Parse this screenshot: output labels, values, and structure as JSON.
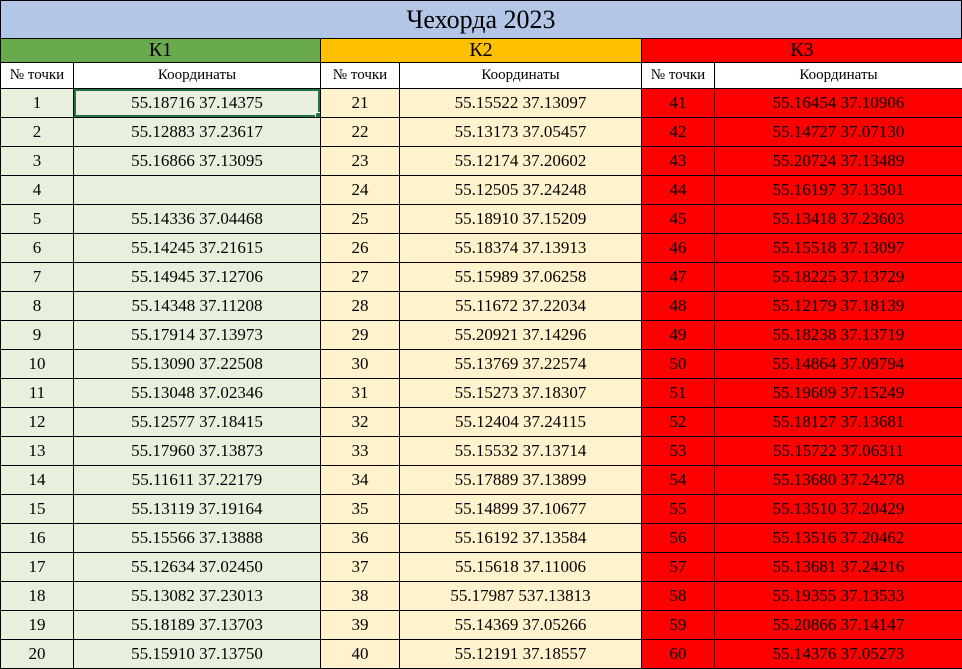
{
  "title": "Чехорда 2023",
  "columns": {
    "num_header": "№ точки",
    "coord_header": "Координаты"
  },
  "colors": {
    "title_bg": "#B4C6E7",
    "border": "#000000",
    "selection": "#217346"
  },
  "selected_cell": {
    "group_index": 0,
    "row_index": 0,
    "column": "coord"
  },
  "groups": [
    {
      "label": "К1",
      "header_color": "#6AAA4F",
      "cell_bg": "#E8F0DD",
      "text_color": "#000000",
      "rows": [
        {
          "num": "1",
          "coord": "55.18716 37.14375"
        },
        {
          "num": "2",
          "coord": "55.12883 37.23617"
        },
        {
          "num": "3",
          "coord": "55.16866 37.13095"
        },
        {
          "num": "4",
          "coord": ""
        },
        {
          "num": "5",
          "coord": "55.14336 37.04468"
        },
        {
          "num": "6",
          "coord": "55.14245 37.21615"
        },
        {
          "num": "7",
          "coord": "55.14945 37.12706"
        },
        {
          "num": "8",
          "coord": "55.14348 37.11208"
        },
        {
          "num": "9",
          "coord": "55.17914 37.13973"
        },
        {
          "num": "10",
          "coord": "55.13090 37.22508"
        },
        {
          "num": "11",
          "coord": "55.13048 37.02346"
        },
        {
          "num": "12",
          "coord": "55.12577 37.18415"
        },
        {
          "num": "13",
          "coord": "55.17960 37.13873"
        },
        {
          "num": "14",
          "coord": "55.11611 37.22179"
        },
        {
          "num": "15",
          "coord": "55.13119 37.19164"
        },
        {
          "num": "16",
          "coord": "55.15566 37.13888"
        },
        {
          "num": "17",
          "coord": "55.12634 37.02450"
        },
        {
          "num": "18",
          "coord": "55.13082 37.23013"
        },
        {
          "num": "19",
          "coord": "55.18189 37.13703"
        },
        {
          "num": "20",
          "coord": "55.15910 37.13750"
        }
      ]
    },
    {
      "label": "К2",
      "header_color": "#FFC000",
      "cell_bg": "#FFF2CC",
      "text_color": "#000000",
      "rows": [
        {
          "num": "21",
          "coord": "55.15522 37.13097"
        },
        {
          "num": "22",
          "coord": "55.13173 37.05457"
        },
        {
          "num": "23",
          "coord": "55.12174 37.20602"
        },
        {
          "num": "24",
          "coord": "55.12505 37.24248"
        },
        {
          "num": "25",
          "coord": "55.18910 37.15209"
        },
        {
          "num": "26",
          "coord": "55.18374 37.13913"
        },
        {
          "num": "27",
          "coord": "55.15989 37.06258"
        },
        {
          "num": "28",
          "coord": "55.11672 37.22034"
        },
        {
          "num": "29",
          "coord": "55.20921 37.14296"
        },
        {
          "num": "30",
          "coord": "55.13769 37.22574"
        },
        {
          "num": "31",
          "coord": "55.15273 37.18307"
        },
        {
          "num": "32",
          "coord": "55.12404 37.24115"
        },
        {
          "num": "33",
          "coord": "55.15532 37.13714"
        },
        {
          "num": "34",
          "coord": "55.17889 37.13899"
        },
        {
          "num": "35",
          "coord": "55.14899 37.10677"
        },
        {
          "num": "36",
          "coord": "55.16192 37.13584"
        },
        {
          "num": "37",
          "coord": "55.15618 37.11006"
        },
        {
          "num": "38",
          "coord": "55.17987 537.13813"
        },
        {
          "num": "39",
          "coord": "55.14369 37.05266"
        },
        {
          "num": "40",
          "coord": "55.12191 37.18557"
        }
      ]
    },
    {
      "label": "К3",
      "header_color": "#FF0000",
      "cell_bg": "#FF0000",
      "text_color": "#000000",
      "rows": [
        {
          "num": "41",
          "coord": "55.16454 37.10906"
        },
        {
          "num": "42",
          "coord": "55.14727 37.07130"
        },
        {
          "num": "43",
          "coord": "55.20724 37.13489"
        },
        {
          "num": "44",
          "coord": "55.16197 37.13501"
        },
        {
          "num": "45",
          "coord": "55.13418 37.23603"
        },
        {
          "num": "46",
          "coord": "55.15518 37.13097"
        },
        {
          "num": "47",
          "coord": "55.18225 37.13729"
        },
        {
          "num": "48",
          "coord": "55.12179 37.18139"
        },
        {
          "num": "49",
          "coord": "55.18238 37.13719"
        },
        {
          "num": "50",
          "coord": "55.14864 37.09794"
        },
        {
          "num": "51",
          "coord": "55.19609 37.15249"
        },
        {
          "num": "52",
          "coord": "55.18127 37.13681"
        },
        {
          "num": "53",
          "coord": "55.15722 37.06311"
        },
        {
          "num": "54",
          "coord": "55.13680 37.24278"
        },
        {
          "num": "55",
          "coord": "55.13510 37.20429"
        },
        {
          "num": "56",
          "coord": "55.13516 37.20462"
        },
        {
          "num": "57",
          "coord": "55.13681 37.24216"
        },
        {
          "num": "58",
          "coord": "55.19355 37.13533"
        },
        {
          "num": "59",
          "coord": "55.20866 37.14147"
        },
        {
          "num": "60",
          "coord": "55.14376 37.05273"
        }
      ]
    }
  ]
}
